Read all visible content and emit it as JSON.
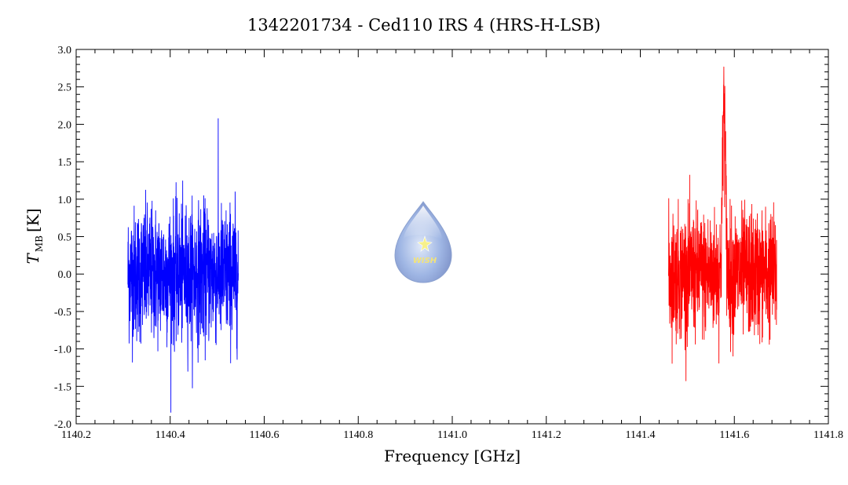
{
  "chart_data": {
    "type": "line",
    "title": "1342201734 - Ced110 IRS 4 (HRS-H-LSB)",
    "xlabel": "Frequency [GHz]",
    "ylabel_main": "T",
    "ylabel_sub": "MB",
    "ylabel_unit": "[K]",
    "xlim": [
      1140.2,
      1141.8
    ],
    "ylim": [
      -2.0,
      3.0
    ],
    "x_ticks": [
      "1140.2",
      "1140.4",
      "1140.6",
      "1140.8",
      "1141.0",
      "1141.2",
      "1141.4",
      "1141.6",
      "1141.8"
    ],
    "y_ticks": [
      "-2.0",
      "-1.5",
      "-1.0",
      "-0.5",
      "0.0",
      "0.5",
      "1.0",
      "1.5",
      "2.0",
      "2.5",
      "3.0"
    ],
    "grid": false,
    "series": [
      {
        "color": "#0000ff",
        "x_range": [
          1140.31,
          1140.545
        ],
        "noise_rms": 0.45,
        "baseline": 0.0,
        "min": -1.85,
        "max": 2.08,
        "peaks": []
      },
      {
        "color": "#ff0000",
        "x_range": [
          1141.46,
          1141.69
        ],
        "noise_rms": 0.42,
        "baseline": 0.0,
        "min": -1.43,
        "max": 2.77,
        "peaks": [
          {
            "x": 1141.578,
            "height": 2.3,
            "width": 0.003
          }
        ]
      }
    ],
    "logo": {
      "text": "WISH"
    }
  }
}
